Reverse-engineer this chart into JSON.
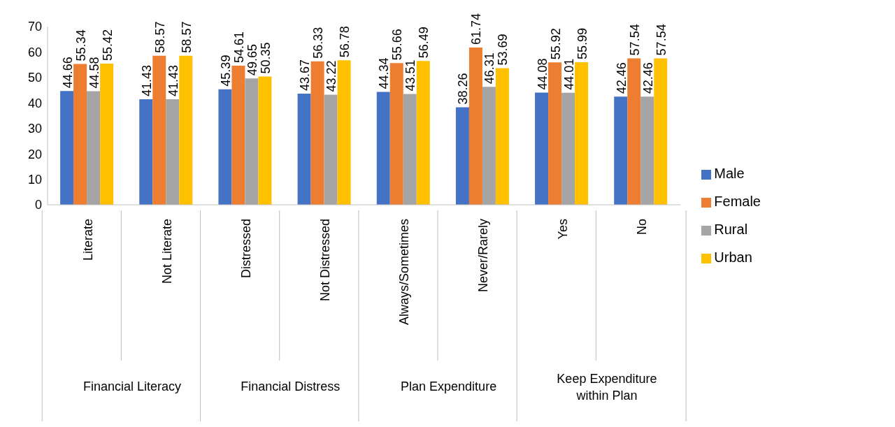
{
  "chart_data": {
    "type": "bar",
    "categories": [
      "Literate",
      "Not Literate",
      "Distressed",
      "Not Distressed",
      "Always/Sometimes",
      "Never/Rarely",
      "Yes",
      "No"
    ],
    "annotations": [
      "Financial Literacy",
      "Financial Distress",
      "Plan Expenditure",
      "Keep Expenditure within Plan"
    ],
    "series": [
      {
        "name": "Male",
        "color": "#4472c4",
        "values": [
          44.66,
          41.43,
          45.39,
          43.67,
          44.34,
          38.26,
          44.08,
          42.46
        ]
      },
      {
        "name": "Female",
        "color": "#ed7d31",
        "values": [
          55.34,
          58.57,
          54.61,
          56.33,
          55.66,
          61.74,
          55.92,
          57.54
        ]
      },
      {
        "name": "Rural",
        "color": "#a5a5a5",
        "values": [
          44.58,
          41.43,
          49.65,
          43.22,
          43.51,
          46.31,
          44.01,
          42.46
        ]
      },
      {
        "name": "Urban",
        "color": "#ffc000",
        "values": [
          55.42,
          58.57,
          50.35,
          56.78,
          56.49,
          53.69,
          55.99,
          57.54
        ]
      }
    ],
    "ylim": [
      0,
      70
    ],
    "yticks": [
      0,
      10,
      20,
      30,
      40,
      50,
      60,
      70
    ],
    "grid": false,
    "legend": "right",
    "data_labels": true
  }
}
